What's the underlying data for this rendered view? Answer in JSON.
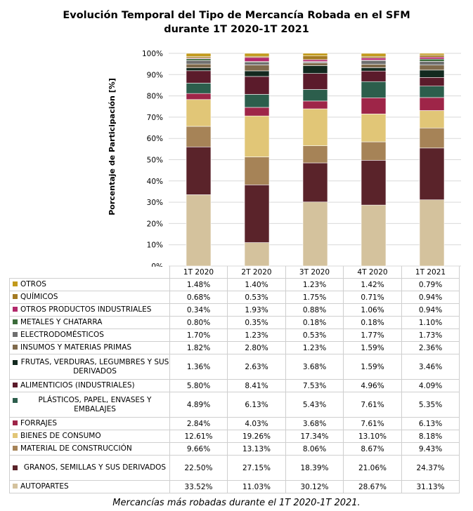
{
  "colors": {
    "AUTOPARTES": "#d4c29d",
    "GRANOS, SEMILLAS Y SUS DERIVADOS": "#5a232a",
    "MATERIAL DE CONSTRUCCIÓN": "#a68357",
    "BIENES DE CONSUMO": "#e1c677",
    "FORRAJES": "#9e2548",
    "PLÁSTICOS, PAPEL, ENVASES Y EMBALAJES": "#2c5e4c",
    "ALIMENTICIOS (INDUSTRIALES)": "#5b1b2b",
    "FRUTAS, VERDURAS, LEGUMBRES Y SUS DERIVADOS": "#13291f",
    "INSUMOS Y MATERIAS PRIMAS": "#806a4c",
    "ELECTRODOMÉSTICOS": "#6f6f6f",
    "METALES Y CHATARRA": "#3b6b3a",
    "OTROS PRODUCTOS INDUSTRIALES": "#b2296b",
    "QUÍMICOS": "#a47b22",
    "OTROS": "#c29a1c"
  },
  "chart_data": {
    "type": "bar",
    "stacked": true,
    "title_lines": [
      "Evolución Temporal del Tipo de Mercancía Robada en el SFM",
      "durante 1T 2020-1T 2021"
    ],
    "ylabel": "Porcentaje de Participación [%]",
    "ylim": [
      0,
      100
    ],
    "yticks": [
      "0%",
      "10%",
      "20%",
      "30%",
      "40%",
      "50%",
      "60%",
      "70%",
      "80%",
      "90%",
      "100%"
    ],
    "categories": [
      "1T 2020",
      "2T 2020",
      "3T 2020",
      "4T 2020",
      "1T 2021"
    ],
    "series": [
      {
        "name": "OTROS",
        "values": [
          1.48,
          1.4,
          1.23,
          1.42,
          0.79
        ],
        "labels": [
          "1.48%",
          "1.40%",
          "1.23%",
          "1.42%",
          "0.79%"
        ]
      },
      {
        "name": "QUÍMICOS",
        "values": [
          0.68,
          0.53,
          1.75,
          0.71,
          0.94
        ],
        "labels": [
          "0.68%",
          "0.53%",
          "1.75%",
          "0.71%",
          "0.94%"
        ]
      },
      {
        "name": "OTROS PRODUCTOS INDUSTRIALES",
        "values": [
          0.34,
          1.93,
          0.88,
          1.06,
          0.94
        ],
        "labels": [
          "0.34%",
          "1.93%",
          "0.88%",
          "1.06%",
          "0.94%"
        ]
      },
      {
        "name": "METALES Y CHATARRA",
        "values": [
          0.8,
          0.35,
          0.18,
          0.18,
          1.1
        ],
        "labels": [
          "0.80%",
          "0.35%",
          "0.18%",
          "0.18%",
          "1.10%"
        ]
      },
      {
        "name": "ELECTRODOMÉSTICOS",
        "values": [
          1.7,
          1.23,
          0.53,
          1.77,
          1.73
        ],
        "labels": [
          "1.70%",
          "1.23%",
          "0.53%",
          "1.77%",
          "1.73%"
        ]
      },
      {
        "name": "INSUMOS Y MATERIAS PRIMAS",
        "values": [
          1.82,
          2.8,
          1.23,
          1.59,
          2.36
        ],
        "labels": [
          "1.82%",
          "2.80%",
          "1.23%",
          "1.59%",
          "2.36%"
        ]
      },
      {
        "name": "FRUTAS, VERDURAS, LEGUMBRES Y SUS DERIVADOS",
        "values": [
          1.36,
          2.63,
          3.68,
          1.59,
          3.46
        ],
        "labels": [
          "1.36%",
          "2.63%",
          "3.68%",
          "1.59%",
          "3.46%"
        ]
      },
      {
        "name": "ALIMENTICIOS (INDUSTRIALES)",
        "values": [
          5.8,
          8.41,
          7.53,
          4.96,
          4.09
        ],
        "labels": [
          "5.80%",
          "8.41%",
          "7.53%",
          "4.96%",
          "4.09%"
        ]
      },
      {
        "name": "PLÁSTICOS, PAPEL, ENVASES Y EMBALAJES",
        "values": [
          4.89,
          6.13,
          5.43,
          7.61,
          5.35
        ],
        "labels": [
          "4.89%",
          "6.13%",
          "5.43%",
          "7.61%",
          "5.35%"
        ]
      },
      {
        "name": "FORRAJES",
        "values": [
          2.84,
          4.03,
          3.68,
          7.61,
          6.13
        ],
        "labels": [
          "2.84%",
          "4.03%",
          "3.68%",
          "7.61%",
          "6.13%"
        ]
      },
      {
        "name": "BIENES DE CONSUMO",
        "values": [
          12.61,
          19.26,
          17.34,
          13.1,
          8.18
        ],
        "labels": [
          "12.61%",
          "19.26%",
          "17.34%",
          "13.10%",
          "8.18%"
        ]
      },
      {
        "name": "MATERIAL DE CONSTRUCCIÓN",
        "values": [
          9.66,
          13.13,
          8.06,
          8.67,
          9.43
        ],
        "labels": [
          "9.66%",
          "13.13%",
          "8.06%",
          "8.67%",
          "9.43%"
        ]
      },
      {
        "name": "GRANOS, SEMILLAS Y SUS DERIVADOS",
        "values": [
          22.5,
          27.15,
          18.39,
          21.06,
          24.37
        ],
        "labels": [
          "22.50%",
          "27.15%",
          "18.39%",
          "21.06%",
          "24.37%"
        ]
      },
      {
        "name": "AUTOPARTES",
        "values": [
          33.52,
          11.03,
          30.12,
          28.67,
          31.13
        ],
        "labels": [
          "33.52%",
          "11.03%",
          "30.12%",
          "28.67%",
          "31.13%"
        ]
      }
    ],
    "caption": "Mercancías más robadas durante el 1T 2020-1T 2021."
  }
}
